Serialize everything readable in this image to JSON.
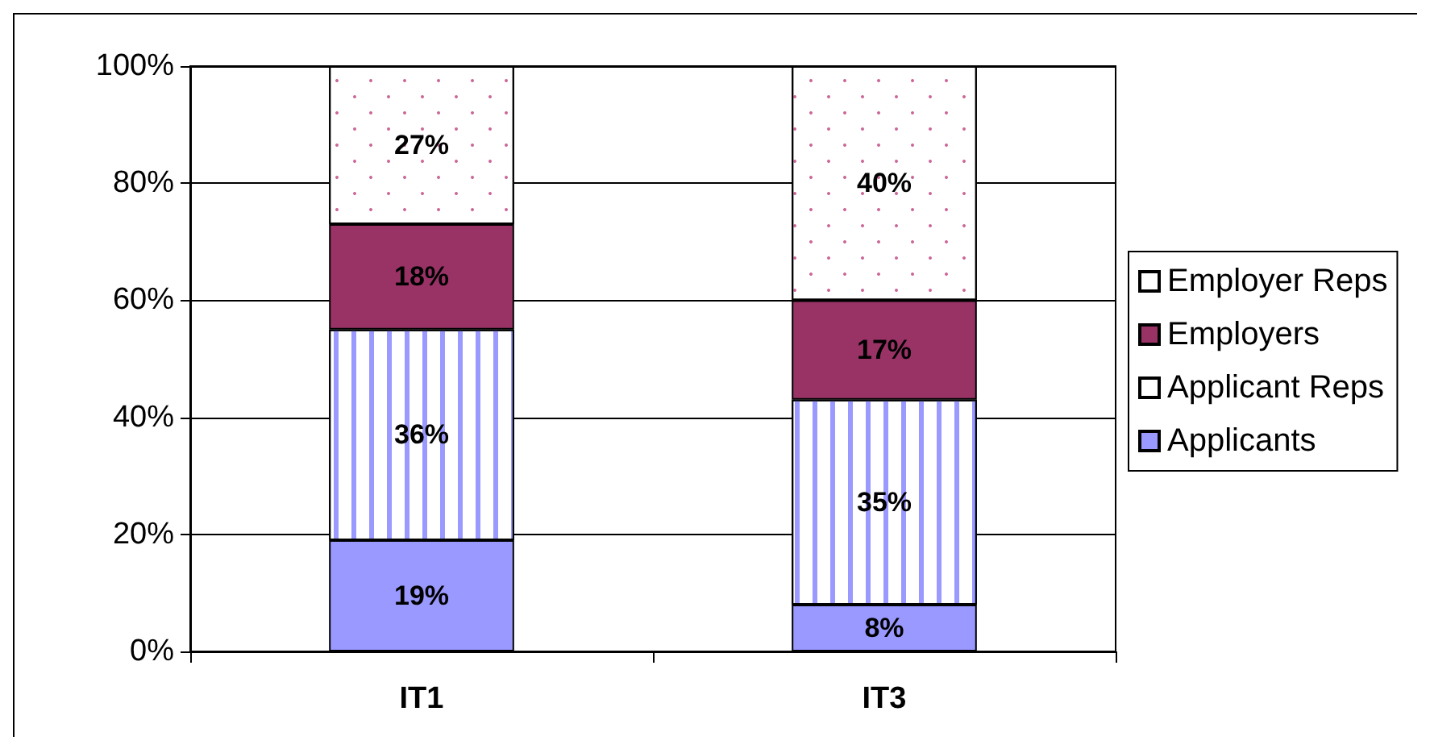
{
  "chart_data": {
    "type": "bar",
    "stacked": true,
    "categories": [
      "IT1",
      "IT3"
    ],
    "series": [
      {
        "name": "Applicants",
        "color": "#9999ff",
        "values": [
          19,
          8
        ],
        "value_labels": [
          "19%",
          "8%"
        ]
      },
      {
        "name": "Applicant Reps",
        "color": "#ffffff",
        "values": [
          36,
          35
        ],
        "value_labels": [
          "36%",
          "35%"
        ]
      },
      {
        "name": "Employers",
        "color": "#993366",
        "values": [
          18,
          17
        ],
        "value_labels": [
          "18%",
          "17%"
        ]
      },
      {
        "name": "Employer Reps",
        "color": "#ffffff",
        "values": [
          27,
          40
        ],
        "value_labels": [
          "27%",
          "40%"
        ]
      }
    ],
    "ylim": [
      0,
      100
    ],
    "yticks": [
      {
        "value": 0,
        "label": "0%"
      },
      {
        "value": 20,
        "label": "20%"
      },
      {
        "value": 40,
        "label": "40%"
      },
      {
        "value": 60,
        "label": "60%"
      },
      {
        "value": 80,
        "label": "80%"
      },
      {
        "value": 100,
        "label": "100%"
      }
    ],
    "grid": "y",
    "legend": "right"
  }
}
